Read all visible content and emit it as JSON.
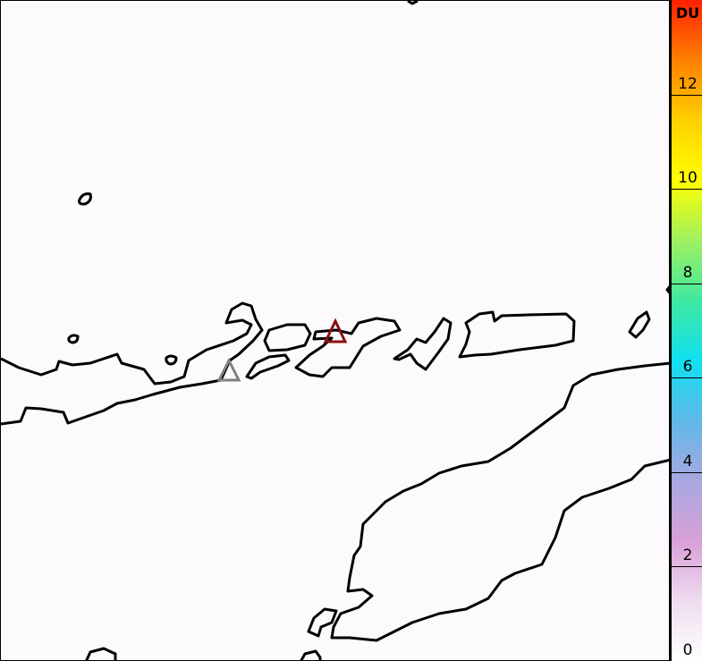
{
  "colorbar": {
    "unit": "DU",
    "range": [
      0,
      14
    ],
    "ticks": [
      {
        "value": 0,
        "label": "0"
      },
      {
        "value": 2,
        "label": "2"
      },
      {
        "value": 4,
        "label": "4"
      },
      {
        "value": 6,
        "label": "6"
      },
      {
        "value": 8,
        "label": "8"
      },
      {
        "value": 10,
        "label": "10"
      },
      {
        "value": 12,
        "label": "12"
      }
    ],
    "colors": [
      "#ffffff",
      "#eedcf0",
      "#d8a0d8",
      "#a8a8e0",
      "#60b8e8",
      "#10e0f0",
      "#40e8a0",
      "#a0f060",
      "#ffff00",
      "#ffd000",
      "#ff8000",
      "#ff2000"
    ]
  },
  "map": {
    "coastline_color": "#000000",
    "markers": [
      {
        "name": "volcano-active",
        "shape": "triangle",
        "color": "#8b1010"
      },
      {
        "name": "volcano",
        "shape": "triangle",
        "color": "#808080"
      }
    ]
  }
}
